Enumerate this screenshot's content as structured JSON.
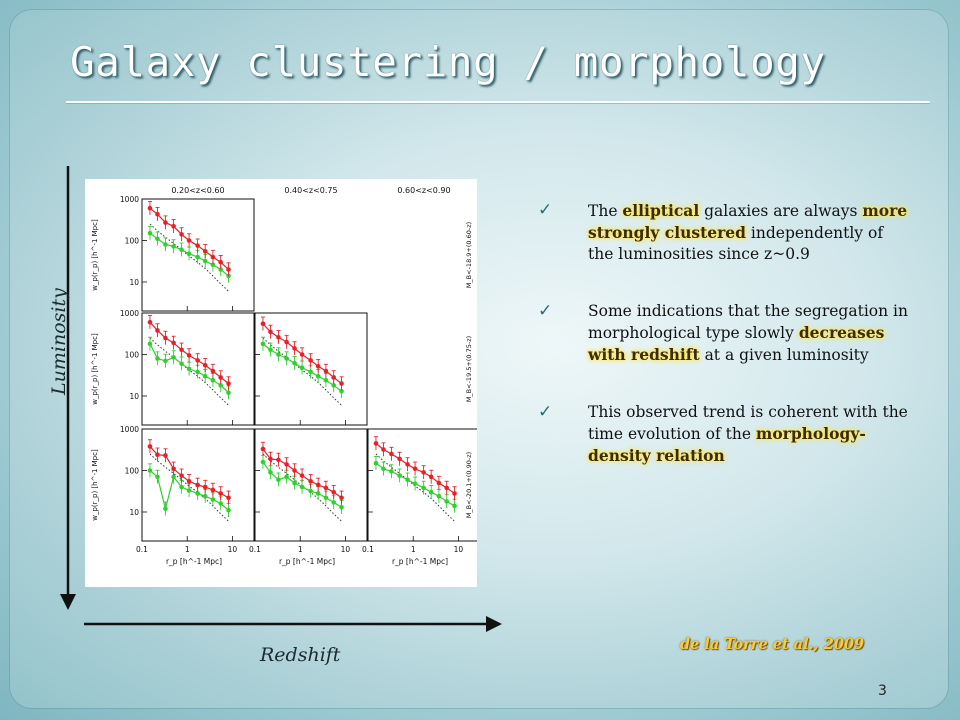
{
  "slide": {
    "title": "Galaxy clustering / morphology",
    "page_number": "3",
    "citation": "de la Torre et al., 2009",
    "axis_arrows": {
      "vertical_label": "Luminosity",
      "horizontal_label": "Redshift"
    },
    "bullets": [
      {
        "parts": [
          {
            "text": "The ",
            "highlight": false
          },
          {
            "text": "elliptical",
            "highlight": true
          },
          {
            "text": " galaxies are always ",
            "highlight": false
          },
          {
            "text": "more strongly clustered",
            "highlight": true
          },
          {
            "text": " independently of the luminosities since z~0.9",
            "highlight": false
          }
        ]
      },
      {
        "parts": [
          {
            "text": "Some indications that the segregation in morphological type slowly ",
            "highlight": false
          },
          {
            "text": "decreases with redshift",
            "highlight": true
          },
          {
            "text": " at a given luminosity",
            "highlight": false
          }
        ]
      },
      {
        "parts": [
          {
            "text": "This observed trend is coherent with the time evolution of the ",
            "highlight": false
          },
          {
            "text": "morphology-density relation",
            "highlight": true
          }
        ]
      }
    ],
    "colors": {
      "highlight_glow": "#ffe45c",
      "citation": "#f8cc3a",
      "early_type": "#e8202a",
      "late_type": "#2fd12f"
    }
  },
  "chart_data": {
    "type": "scatter",
    "grid": false,
    "x_scale": "log",
    "y_scale": "log",
    "xlim": [
      0.1,
      30
    ],
    "ylim": [
      2,
      1000
    ],
    "xticks": [
      "0.1",
      "1",
      "10"
    ],
    "yticks": [
      "10",
      "100",
      "1000"
    ],
    "ylabel": "w_p(r_p) [h^-1 Mpc]",
    "xlabel": "r_p [h^-1 Mpc]",
    "column_labels": [
      "0.20<z<0.60",
      "0.40<z<0.75",
      "0.60<z<0.90"
    ],
    "row_labels": [
      "M_B<-18.9+(0.60-z)",
      "M_B<-19.5+(0.75-z)",
      "M_B<-20.1+(0.90-z)"
    ],
    "rp": [
      0.15,
      0.22,
      0.33,
      0.5,
      0.75,
      1.1,
      1.7,
      2.5,
      3.7,
      5.5,
      8.2
    ],
    "series": [
      {
        "key": "early",
        "color": "#e8202a"
      },
      {
        "key": "late",
        "color": "#2fd12f"
      },
      {
        "key": "reference",
        "color": "#333333",
        "style": "dotted"
      }
    ],
    "panels": [
      {
        "row": 0,
        "col": 0,
        "early": [
          600,
          430,
          270,
          220,
          140,
          100,
          75,
          55,
          40,
          30,
          20
        ],
        "late": [
          150,
          110,
          80,
          72,
          60,
          48,
          40,
          32,
          26,
          20,
          14
        ],
        "reference": [
          250,
          170,
          120,
          85,
          60,
          42,
          30,
          21,
          14,
          9,
          6
        ]
      },
      {
        "row": 1,
        "col": 0,
        "early": [
          600,
          380,
          250,
          190,
          130,
          95,
          72,
          55,
          40,
          28,
          20
        ],
        "late": [
          180,
          80,
          70,
          85,
          60,
          45,
          38,
          30,
          24,
          18,
          12
        ],
        "reference": [
          250,
          170,
          120,
          85,
          60,
          42,
          30,
          21,
          14,
          9,
          6
        ]
      },
      {
        "row": 1,
        "col": 1,
        "early": [
          550,
          350,
          260,
          200,
          140,
          100,
          72,
          52,
          40,
          28,
          20
        ],
        "late": [
          180,
          130,
          100,
          80,
          62,
          48,
          38,
          30,
          24,
          18,
          13
        ],
        "reference": [
          250,
          170,
          120,
          85,
          60,
          42,
          30,
          21,
          14,
          9,
          6
        ]
      },
      {
        "row": 2,
        "col": 0,
        "early": [
          380,
          240,
          230,
          110,
          75,
          55,
          45,
          40,
          34,
          28,
          22
        ],
        "late": [
          100,
          70,
          12,
          70,
          40,
          33,
          28,
          24,
          20,
          16,
          11
        ],
        "reference": [
          250,
          170,
          120,
          85,
          60,
          42,
          30,
          21,
          14,
          9,
          6
        ]
      },
      {
        "row": 2,
        "col": 1,
        "early": [
          330,
          190,
          180,
          140,
          100,
          75,
          55,
          45,
          38,
          30,
          22
        ],
        "late": [
          160,
          90,
          60,
          70,
          50,
          40,
          32,
          28,
          22,
          17,
          13
        ],
        "reference": [
          250,
          170,
          120,
          85,
          60,
          42,
          30,
          21,
          14,
          9,
          6
        ]
      },
      {
        "row": 2,
        "col": 2,
        "early": [
          450,
          320,
          250,
          190,
          140,
          110,
          90,
          70,
          50,
          38,
          28
        ],
        "late": [
          150,
          110,
          95,
          75,
          60,
          48,
          38,
          30,
          24,
          18,
          14
        ],
        "reference": [
          250,
          170,
          120,
          85,
          60,
          42,
          30,
          21,
          14,
          9,
          6
        ]
      }
    ]
  }
}
